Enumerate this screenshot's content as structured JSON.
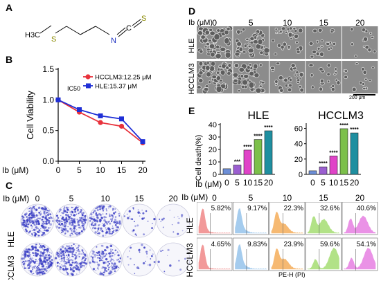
{
  "panels": {
    "A": {
      "label": "A",
      "molecule": {
        "methyl": "H3C",
        "sulfur": "S",
        "nitrogen": "N",
        "carbon": "C",
        "terminal_sulfur": "S"
      }
    },
    "B": {
      "label": "B",
      "ic50_label": "IC50",
      "chart_data": {
        "type": "line",
        "x": [
          0,
          5,
          10,
          15,
          20
        ],
        "xlabel": "Ib (μM)",
        "ylabel": "Cell Viability",
        "xticks": [
          "0",
          "5",
          "10",
          "15",
          "20"
        ],
        "yticks": [
          "0.0",
          "0.5",
          "1.0",
          "1.5"
        ],
        "ylim": [
          0,
          1.5
        ],
        "grid": false,
        "legend_position": "top-right",
        "series": [
          {
            "name": "HCCLM3:12.25 μM",
            "color": "#e8323c",
            "marker": "circle",
            "values": [
              1.0,
              0.8,
              0.63,
              0.57,
              0.3
            ]
          },
          {
            "name": "HLE:15.37 μM",
            "color": "#1f2fd6",
            "marker": "square",
            "values": [
              1.0,
              0.84,
              0.74,
              0.69,
              0.32
            ]
          }
        ]
      }
    },
    "C": {
      "label": "C",
      "xlabel": "Ib (μM)",
      "concentrations": [
        "0",
        "5",
        "10",
        "15",
        "20"
      ],
      "rows": [
        "HLE",
        "HCCLM3"
      ],
      "density_hle": [
        1.0,
        0.85,
        0.65,
        0.12,
        0.06
      ],
      "density_hcclm3": [
        1.0,
        0.8,
        0.55,
        0.1,
        0.04
      ],
      "stain_color": "#3b3fc4"
    },
    "D": {
      "label": "D",
      "xlabel": "Ib (μM)",
      "concentrations": [
        "0",
        "5",
        "10",
        "15",
        "20"
      ],
      "rows": [
        "HLE",
        "HCCLM3"
      ],
      "scale_bar": "200 μm"
    },
    "E": {
      "label": "E",
      "chart_data": [
        {
          "type": "bar",
          "title": "HLE",
          "categories": [
            "0",
            "5",
            "10",
            "15",
            "20"
          ],
          "values": [
            4.5,
            7.5,
            19.5,
            28.0,
            35.0
          ],
          "significance": [
            "",
            "***",
            "****",
            "****",
            "****"
          ],
          "ylabel": "Cell death(%)",
          "xlabel": "Ib (μM)",
          "yticks": [
            "0",
            "10",
            "20",
            "30",
            "40"
          ],
          "ylim": [
            0,
            40
          ],
          "colors": [
            "#6d8fd8",
            "#9b5fd0",
            "#e043c8",
            "#7cc04a",
            "#1f8fa0"
          ]
        },
        {
          "type": "bar",
          "title": "HCCLM3",
          "categories": [
            "0",
            "5",
            "10",
            "15",
            "20"
          ],
          "values": [
            4.6,
            9.8,
            24.0,
            59.6,
            54.1
          ],
          "significance": [
            "",
            "****",
            "****",
            "****",
            "****"
          ],
          "yticks": [
            "0",
            "20",
            "40",
            "60"
          ],
          "ylim": [
            0,
            65
          ],
          "colors": [
            "#6d8fd8",
            "#9b5fd0",
            "#e043c8",
            "#7cc04a",
            "#1f8fa0"
          ]
        }
      ]
    },
    "F": {
      "xlabel": "Ib (μM)",
      "axis_label": "PE-H (PI)",
      "concentrations": [
        "0",
        "5",
        "10",
        "15",
        "20"
      ],
      "rows": [
        "HLE",
        "HCCLM3"
      ],
      "colors": [
        "#f08080",
        "#8fc0ea",
        "#f5a850",
        "#9fdc6a",
        "#e678e0"
      ],
      "percent_hle": [
        "5.82%",
        "9.17%",
        "22.3%",
        "32.6%",
        "40.6%"
      ],
      "percent_hcclm3": [
        "4.65%",
        "9.83%",
        "23.9%",
        "59.6%",
        "54.1%"
      ],
      "dead_fraction_hle": [
        0.058,
        0.092,
        0.223,
        0.326,
        0.406
      ],
      "dead_fraction_hcclm3": [
        0.047,
        0.098,
        0.239,
        0.596,
        0.541
      ]
    }
  }
}
